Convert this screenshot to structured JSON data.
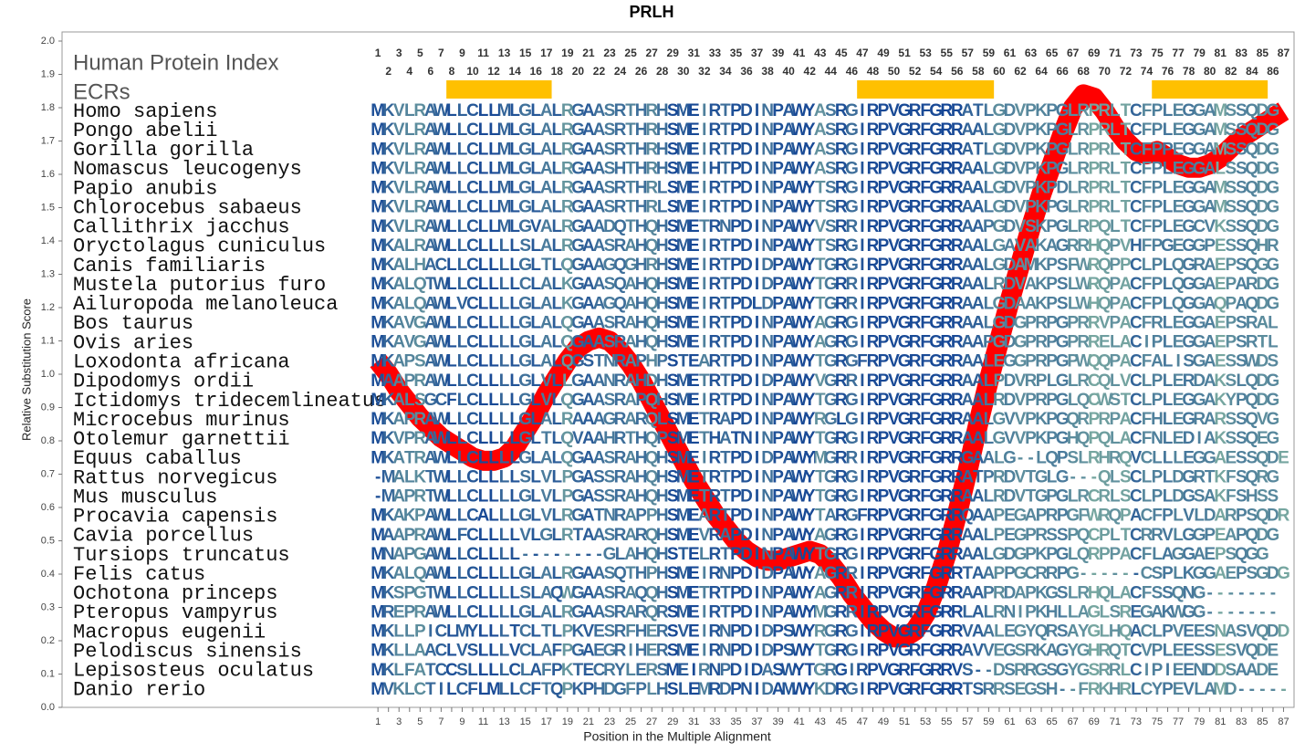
{
  "chart_data": {
    "type": "line",
    "title": "PRLH",
    "x_label": "Position in the Multiple Alignment",
    "y_label": "Relative Substitution Score",
    "annotations": [
      "Human Protein Index",
      "ECRs"
    ],
    "xlim": [
      -29,
      88
    ],
    "ylim": [
      0,
      2
    ],
    "yticks": [
      {
        "value": 0,
        "label": "0.0"
      },
      0.1,
      0.2,
      0.3,
      0.4,
      0.5,
      0.6,
      0.7,
      0.8,
      0.9,
      {
        "value": 1,
        "label": "1.0"
      },
      1.1,
      1.2,
      1.3,
      1.4,
      1.5,
      1.6,
      1.7,
      1.8,
      1.9,
      {
        "value": 2,
        "label": "2.0"
      }
    ],
    "xticks": [
      1,
      2,
      3,
      4,
      5,
      6,
      7,
      8,
      9,
      10,
      11,
      12,
      13,
      14,
      15,
      16,
      17,
      18,
      19,
      20,
      21,
      22,
      23,
      24,
      25,
      26,
      27,
      28,
      29,
      30,
      31,
      32,
      33,
      34,
      35,
      36,
      37,
      38,
      39,
      40,
      41,
      42,
      43,
      44,
      45,
      46,
      47,
      48,
      49,
      50,
      51,
      52,
      53,
      54,
      55,
      56,
      57,
      58,
      59,
      60,
      61,
      62,
      63,
      64,
      65,
      66,
      67,
      68,
      69,
      70,
      71,
      72,
      73,
      74,
      75,
      76,
      77,
      78,
      79,
      80,
      81,
      82,
      83,
      84,
      85,
      86,
      87
    ],
    "x": [
      1,
      2,
      3,
      4,
      5,
      6,
      7,
      8,
      9,
      10,
      11,
      12,
      13,
      14,
      15,
      16,
      17,
      18,
      19,
      20,
      21,
      22,
      23,
      24,
      25,
      26,
      27,
      28,
      29,
      30,
      31,
      32,
      33,
      34,
      35,
      36,
      37,
      38,
      39,
      40,
      41,
      42,
      43,
      44,
      45,
      46,
      47,
      48,
      49,
      50,
      51,
      52,
      53,
      54,
      55,
      56,
      57,
      58,
      59,
      60,
      61,
      62,
      63,
      64,
      65,
      66,
      67,
      68,
      69,
      70,
      71,
      72,
      73,
      74,
      75,
      76,
      77,
      78,
      79,
      80,
      81,
      82,
      83,
      84,
      85,
      86,
      87
    ],
    "series": [
      {
        "color": "#ff0000",
        "values": [
          1.04,
          1.0,
          0.95,
          0.91,
          0.87,
          0.84,
          0.81,
          0.79,
          0.77,
          0.75,
          0.74,
          0.74,
          0.75,
          0.78,
          0.83,
          0.88,
          0.94,
          0.99,
          1.04,
          1.08,
          1.1,
          1.11,
          1.1,
          1.07,
          1.03,
          0.98,
          0.92,
          0.86,
          0.8,
          0.74,
          0.68,
          0.63,
          0.58,
          0.54,
          0.5,
          0.47,
          0.45,
          0.44,
          0.44,
          0.45,
          0.46,
          0.47,
          0.46,
          0.43,
          0.39,
          0.34,
          0.3,
          0.26,
          0.23,
          0.21,
          0.21,
          0.23,
          0.28,
          0.36,
          0.46,
          0.58,
          0.71,
          0.85,
          0.98,
          1.1,
          1.22,
          1.33,
          1.44,
          1.54,
          1.63,
          1.72,
          1.8,
          1.84,
          1.83,
          1.79,
          1.74,
          1.7,
          1.67,
          1.66,
          1.67,
          1.65,
          1.63,
          1.62,
          1.62,
          1.63,
          1.65,
          1.68,
          1.71,
          1.73,
          1.75,
          1.77,
          1.79
        ]
      }
    ],
    "ecrs": {
      "color": "#ffc000",
      "ranges": [
        [
          8,
          17
        ],
        [
          47,
          59
        ],
        [
          75,
          85
        ]
      ]
    },
    "rows": [
      {
        "name": "Homo sapiens",
        "sequence": "MKVLRAWLLCLLMLGLALRGAASRTHRHSMEIRTPDINPAWYASRGIRPVGRFGRRATLGDVPKPGLRPRLTCFPLEGGAMSSQDG"
      },
      {
        "name": "Pongo abelii",
        "sequence": "MKVLRAWLLCLLMLGLALRGAASRTHRHSMEIRTPDINPAWYASRGIRPVGRFGRRAALGDVPKPGLRPRLTCFPLEGGAMSSQDG"
      },
      {
        "name": "Gorilla gorilla",
        "sequence": "MKVLRAWLLCLLMLGLALRGAASRTHRHSMEIRTPDINPAWYASRGIRPVGRFGRRATLGDVPKPGLRPRLTCFPPEGGAMSSQDG"
      },
      {
        "name": "Nomascus leucogenys",
        "sequence": "MKVLRAWLLCLLMLGLALRGAASHTHRHSMEIHTPDINPAWYASRGIRPVGRFGRRAALGDVPKPGLRPRLTCFPLEGGALSSQDG"
      },
      {
        "name": "Papio anubis",
        "sequence": "MKVLRAWLLCLLMLGLALRGAASRTHRLSMEIRTPDINPAWYTSRGIRPVGRFGRRAALGDVPKPDLRPRLTCFPLEGGAMSSQDG"
      },
      {
        "name": "Chlorocebus sabaeus",
        "sequence": "MKVLRAWLLCLLMLGLALRGAASRTHRLSMEIRTPDINPAWYTSRGIRPVGRFGRRAALGDVPKPGLRPRLTCFPLEGGAMSSQDG"
      },
      {
        "name": "Callithrix jacchus",
        "sequence": "MKVLRAWLLCLLMLGVALRGAADQTHQHSMETRNPDINPAWYVSRRIRPVGRFGRRAAPGDVSKPGLRPQLTCFPLEGCVKSSQDG"
      },
      {
        "name": "Oryctolagus cuniculus",
        "sequence": "MKALRAWLLCLLLLSLALRGAASRAHQHSMEIRTPDINPAWYTSRGIRPVGRFGRRAALGAVAKAGRRHQPVHFPGEGGPESSQHR"
      },
      {
        "name": "Canis familiaris",
        "sequence": "MKALHACLLCLLLLGLTLQGAAGQGHRHSMEIRTPDIDPAWYTGRGIRPVGRFGRRAALGDAMKPSFWRQPPCLPLQGRAEPSQGG"
      },
      {
        "name": "Mustela putorius furo",
        "sequence": "MKALQTWLLCLLLLCLALKGAASQAHQHSMEIRTPDIDPAWYTGRRIRPVGRFGRRAALRDVAKPSLWRQPACFPLQGGAEPARDG"
      },
      {
        "name": "Ailuropoda melanoleuca",
        "sequence": "MKALQAWLVCLLLLGLALKGAAGQAHQHSMEIRTPDLDPAWYTGRRIRPVGRFGRRAALGDAAKPSLWHQPACFPLQGGAQPAQDG"
      },
      {
        "name": "Bos taurus",
        "sequence": "MKAVGAWLLCLLLLGLALQGAASRAHQHSMEIRTPDINPAWYAGRGIRPVGRFGRRAALGDGPRPGPRRVPACFRLEGGAEPSRAL"
      },
      {
        "name": "Ovis aries",
        "sequence": "MKAVGAWLLCLLLLGLALQGAASRAHQHSMEIRTPDINPAWYAGRGIRPVGRFGRRAAPGDGPRPGPRRELACIPLEGGAEPSRTL"
      },
      {
        "name": "Loxodonta africana",
        "sequence": "MKAPSAWLLCLLLLGLALQGSTNRAPHPSTEARTPDINPAWYTGRGFRPVGRFGRRAALEGGPRPGPWQQPACFALISGAESSWDS"
      },
      {
        "name": "Dipodomys ordii",
        "sequence": "MAAPRAWLLCLLLLGLVLLGAANRAHDHSMETRTPDIDPAWYVGRRIRPVGRFGRRAALPDVRPLGLRCQLVCLPLERDAKSLQDG"
      },
      {
        "name": "Ictidomys tridecemlineatus",
        "sequence": "MKALSGCFLCLLLLGLVLQGAASRAPQHSMEIRTPDINPAWYTGRGIRPVGRFGRRAALRDVPRPGLQCWSTCLPLEGGAKYPQDG"
      },
      {
        "name": "Microcebus murinus",
        "sequence": "MKAPRAWLLCLLLLGLALRAAAGRARQLSMETRAPDINPAWYRGLGIRPVGRFGRRAALGVVPKPGQRPRPACFHLEGRARSSQVG"
      },
      {
        "name": "Otolemur garnettii",
        "sequence": "MKVPRAWLLCLLLLGLTLQVAAHRTHQPSMETHATNINPAWYTGRGIRPVGRFGRRAALGVVPKPGHQPQLACFNLEDIAKSSQEG"
      },
      {
        "name": "Equus caballus",
        "sequence": "MKATRAWLLCLLLLGLALQGAASRAHQHSMEIRTPDIDPAWYMGRRIRPVGRFGRRGAALG--LQPSLRHRQVCLLLEGGAESSQDE"
      },
      {
        "name": "Rattus norvegicus",
        "sequence": "-MALKTWLLCLLLLSLVLPGASSRAHQHSMETRTPDINPAWYTGRGIRPVGRFGRRATPRDVTGLG---QLSCLPLDGRTKFSQRG"
      },
      {
        "name": "Mus musculus",
        "sequence": "-MAPRTWLLCLLLLGLVLPGASSRAHQHSMETRTPDINPAWYTGRGIRPVGRFGRRAALRDVTGPGLRCRLSCLPLDGSAKFSHSS"
      },
      {
        "name": "Procavia capensis",
        "sequence": "MKAKPAWLLCALLLGLVLRGATNRAPPHSMEARTPDINPAWYTARGFRPVGRFGRRQAAPEGAPRPGFWRQPACFPLVLDARPSQDR"
      },
      {
        "name": "Cavia porcellus",
        "sequence": "MAAPRAWLFCLLLLVLGLRTAASRARQHSMEVRAPDINPAWYAGRGIRPVGRFGRRAALPEGPRSSPQCPLTCRRVLGGPEAPQDG"
      },
      {
        "name": "Tursiops truncatus",
        "sequence": "MNAPGAWLLCLLLL--------GLAHQHSTELRTPDINPAWYTGRGIRPVGRFGRRAALGDGPKPGLQRPPACFLAGGAEPSQGG"
      },
      {
        "name": "Felis catus",
        "sequence": "MKALQAWLLCLLLLGLALRGAASQTHPHSMEIRNPDIDPAWYAGRRIRPVGRFGRRTAAPPGCRRPG------CSPLKGGAEPSGDG"
      },
      {
        "name": "Ochotona princeps",
        "sequence": "MKSPGTWLLCLLLLSLAQWGAASRAQQHSMETRTPDINPAWYAGRRIRPVGRFGRRAAPRDAPKGSLRHQLACFSSQNG-------"
      },
      {
        "name": "Pteropus vampyrus",
        "sequence": "MREPRAWLLCLLLLGLALRGAASRARQRSMEIRTPDINPAWYMGRRIRPVGRFGRRLALRNIPKHLLAGLSREGAKWGG-------"
      },
      {
        "name": "Macropus eugenii",
        "sequence": "MKLLPICLMYLLLTCLTLPKVESRFHERSVEIRNPDIDPSWYRGRGIRPVGRFGRRVAALEGYQRSAYGLHQACLPVEESNASVQDD"
      },
      {
        "name": "Pelodiscus sinensis",
        "sequence": "MKLLAACLVSLLLVCLAFPGAEGRIHERSMEIRNPDIDPSWYTGRGIRPVGRFGRRAVVEGSRKAGYGHRQTCVPLEESSESVQDE"
      },
      {
        "name": "Lepisosteus oculatus",
        "sequence": "MKLFATCCSLLLLCLAFPKTECRYLERSMEIRNPDIDASWYTGRGIRPVGRFGRRVS--DSRRGSGYGSRRLCIPIEENDDSAADE"
      },
      {
        "name": "Danio rerio",
        "sequence": "MVKLCTILCFLMLLCFTQPKPHDGFPLHSLEMRDPNIDAMWYKDRGIRPVGRFGRRTSRRSEGSH--FRKHRLCYPEVLAMD-----"
      }
    ]
  }
}
